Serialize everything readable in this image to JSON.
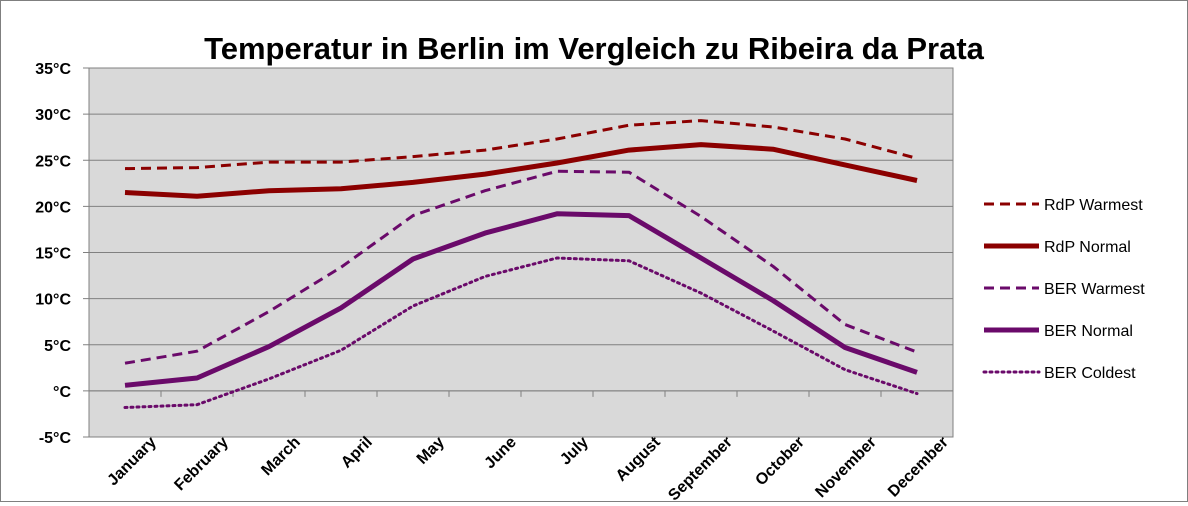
{
  "chart_data": {
    "type": "line",
    "title": "Temperatur in Berlin im Vergleich zu Ribeira da Prata",
    "categories": [
      "January",
      "February",
      "March",
      "April",
      "May",
      "June",
      "July",
      "August",
      "September",
      "October",
      "November",
      "December"
    ],
    "y_ticks": [
      "-5°C",
      "°C",
      "5°C",
      "10°C",
      "15°C",
      "20°C",
      "25°C",
      "30°C",
      "35°C"
    ],
    "ylim": [
      -5,
      35
    ],
    "y_step": 5,
    "grid": true,
    "plot_background": "#d9d9d9",
    "legend_position": "right",
    "series": [
      {
        "name": "RdP Warmest",
        "color": "#8b0000",
        "style": "dashed",
        "values": [
          24.1,
          24.2,
          24.8,
          24.8,
          25.4,
          26.1,
          27.3,
          28.8,
          29.3,
          28.6,
          27.3,
          25.2
        ]
      },
      {
        "name": "RdP Normal",
        "color": "#8b0000",
        "style": "solid",
        "values": [
          21.5,
          21.1,
          21.7,
          21.9,
          22.6,
          23.5,
          24.7,
          26.1,
          26.7,
          26.2,
          24.5,
          22.8
        ]
      },
      {
        "name": "BER Warmest",
        "color": "#6a0a6a",
        "style": "dashed",
        "values": [
          3.0,
          4.3,
          8.6,
          13.4,
          19.0,
          21.7,
          23.8,
          23.7,
          18.9,
          13.5,
          7.2,
          4.2
        ]
      },
      {
        "name": "BER Normal",
        "color": "#6a0a6a",
        "style": "solid",
        "values": [
          0.6,
          1.4,
          4.8,
          9.0,
          14.3,
          17.1,
          19.2,
          19.0,
          14.4,
          9.8,
          4.7,
          2.0
        ]
      },
      {
        "name": "BER Coldest",
        "color": "#6a0a6a",
        "style": "dotted",
        "values": [
          -1.8,
          -1.5,
          1.3,
          4.4,
          9.2,
          12.4,
          14.4,
          14.1,
          10.6,
          6.5,
          2.3,
          -0.3
        ]
      }
    ]
  }
}
